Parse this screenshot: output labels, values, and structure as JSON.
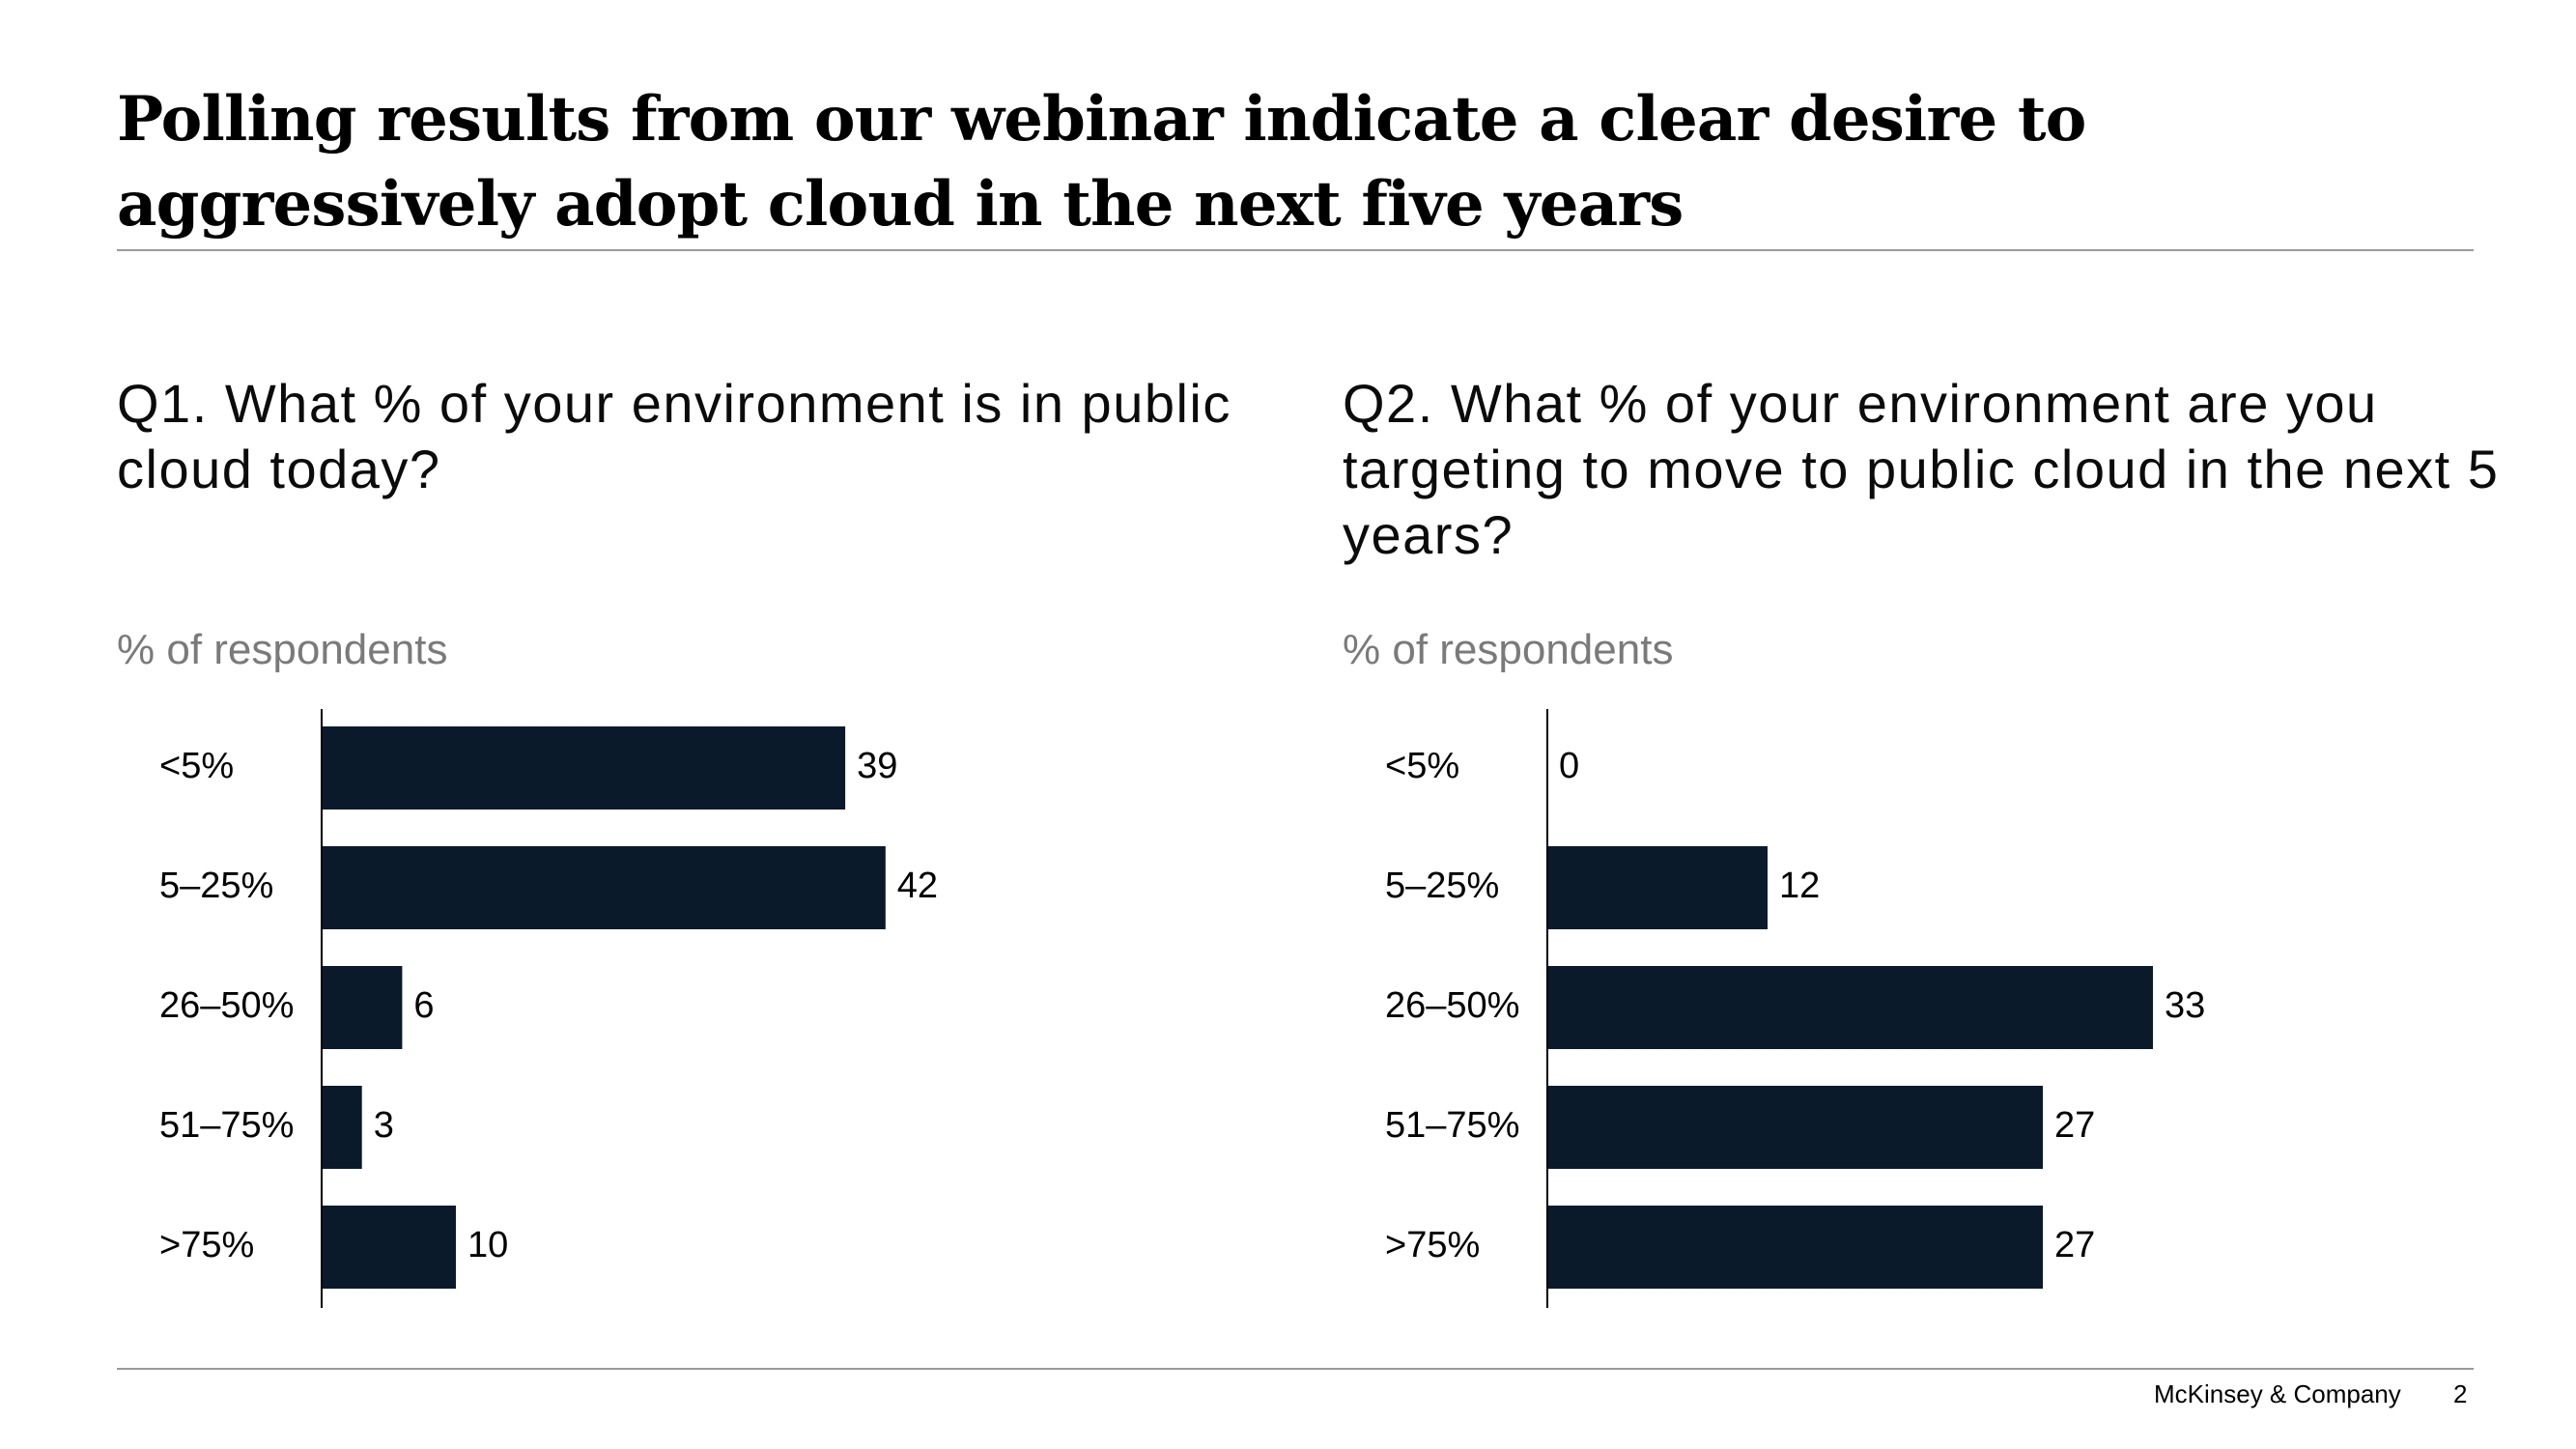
{
  "slide": {
    "title": "Polling results from our webinar indicate a clear desire to aggressively adopt cloud in the next five years",
    "footer_brand": "McKinsey & Company",
    "page_number": "2"
  },
  "colors": {
    "bar": "#0b1a2a",
    "rule": "#9a9a9a",
    "unit_label": "#7a7a7a"
  },
  "chart_data": [
    {
      "type": "bar",
      "orientation": "horizontal",
      "title": "Q1. What % of your environment is in public cloud today?",
      "unit_label": "% of respondents",
      "categories": [
        "<5%",
        "5–25%",
        "26–50%",
        "51–75%",
        ">75%"
      ],
      "values": [
        39,
        42,
        6,
        3,
        10
      ]
    },
    {
      "type": "bar",
      "orientation": "horizontal",
      "title": "Q2. What % of your environment are you targeting to move to public cloud in the next 5 years?",
      "unit_label": "% of respondents",
      "categories": [
        "<5%",
        "5–25%",
        "26–50%",
        "51–75%",
        ">75%"
      ],
      "values": [
        0,
        12,
        33,
        27,
        27
      ]
    }
  ]
}
